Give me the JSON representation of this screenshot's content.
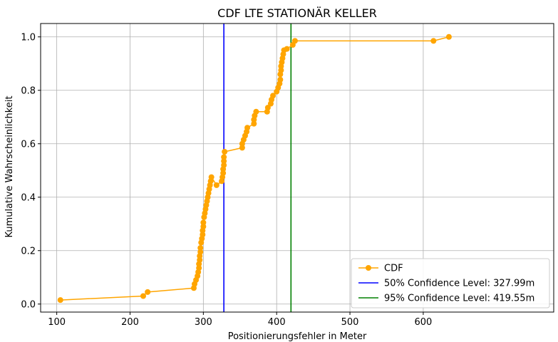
{
  "chart_data": {
    "type": "line",
    "title": "CDF LTE STATIONÄR KELLER",
    "xlabel": "Positionierungsfehler in Meter",
    "ylabel": "Kumulative Wahrscheinlichkeit",
    "xlim": [
      78,
      778
    ],
    "ylim": [
      -0.03,
      1.05
    ],
    "xticks": [
      100,
      200,
      300,
      400,
      500,
      600
    ],
    "yticks": [
      0.0,
      0.2,
      0.4,
      0.6,
      0.8,
      1.0
    ],
    "xtick_labels": [
      "100",
      "200",
      "300",
      "400",
      "500",
      "600"
    ],
    "ytick_labels": [
      "0.0",
      "0.2",
      "0.4",
      "0.6",
      "0.8",
      "1.0"
    ],
    "grid": true,
    "legend_position": "lower-right",
    "series": [
      {
        "name": "CDF",
        "color": "#ffa500",
        "marker": "circle",
        "x": [
          105,
          218,
          224,
          287,
          288,
          290,
          292,
          293,
          294,
          294,
          295,
          295,
          296,
          296,
          297,
          298,
          299,
          299,
          300,
          300,
          301,
          302,
          303,
          304,
          305,
          306,
          307,
          308,
          309,
          310,
          311,
          318,
          325,
          326,
          327,
          327,
          328,
          328,
          328,
          329,
          353,
          353,
          355,
          357,
          359,
          360,
          369,
          369,
          370,
          372,
          387,
          388,
          392,
          393,
          395,
          400,
          402,
          404,
          405,
          405,
          406,
          406,
          407,
          408,
          409,
          410,
          414,
          422,
          425,
          614,
          635
        ],
        "y": [
          0.015,
          0.03,
          0.045,
          0.06,
          0.075,
          0.09,
          0.105,
          0.12,
          0.135,
          0.15,
          0.165,
          0.18,
          0.195,
          0.21,
          0.23,
          0.245,
          0.26,
          0.275,
          0.29,
          0.305,
          0.325,
          0.34,
          0.355,
          0.37,
          0.385,
          0.4,
          0.415,
          0.43,
          0.445,
          0.46,
          0.475,
          0.445,
          0.46,
          0.475,
          0.49,
          0.505,
          0.52,
          0.535,
          0.55,
          0.57,
          0.585,
          0.6,
          0.615,
          0.63,
          0.645,
          0.66,
          0.675,
          0.69,
          0.705,
          0.72,
          0.72,
          0.735,
          0.75,
          0.765,
          0.78,
          0.795,
          0.81,
          0.825,
          0.84,
          0.86,
          0.875,
          0.89,
          0.905,
          0.92,
          0.935,
          0.95,
          0.955,
          0.97,
          0.985,
          0.985,
          1.0
        ]
      },
      {
        "name": "50% Confidence Level: 327.99m",
        "color": "#0000ff",
        "type": "vline",
        "x": 327.99
      },
      {
        "name": "95% Confidence Level: 419.55m",
        "color": "#008000",
        "type": "vline",
        "x": 419.55
      }
    ]
  }
}
